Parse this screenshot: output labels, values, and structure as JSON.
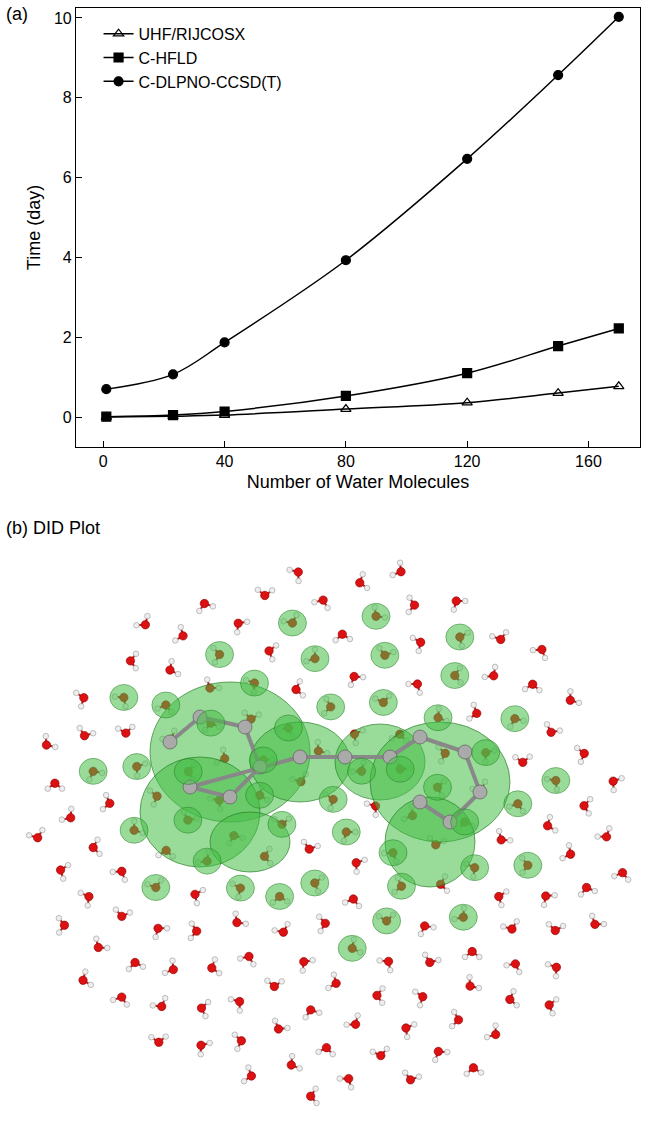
{
  "chart_data": {
    "type": "line",
    "panel": "(a)",
    "xlabel": "Number of Water Molecules",
    "ylabel": "Time (day)",
    "x": [
      1,
      23,
      40,
      80,
      120,
      150,
      170
    ],
    "series": [
      {
        "name": "UHF/RIJCOSX",
        "color": "#000000",
        "marker": "triangle-open",
        "values": [
          0.0,
          0.02,
          0.05,
          0.2,
          0.36,
          0.6,
          0.77
        ]
      },
      {
        "name": "C-HFLD",
        "color": "#000000",
        "marker": "square",
        "values": [
          0.01,
          0.05,
          0.14,
          0.53,
          1.1,
          1.78,
          2.22
        ]
      },
      {
        "name": "C-DLPNO-CCSD(T)",
        "color": "#000000",
        "marker": "circle",
        "values": [
          0.7,
          1.07,
          1.87,
          3.93,
          6.47,
          8.57,
          10.03
        ]
      }
    ],
    "xlim": [
      -9,
      177
    ],
    "ylim": [
      -0.75,
      10.25
    ],
    "xticks": [
      0,
      40,
      80,
      120,
      160
    ],
    "yticks": [
      0,
      2,
      4,
      6,
      8,
      10
    ],
    "legend": "top left",
    "grid": false
  },
  "panel_b": {
    "title": "(b) DID Plot"
  }
}
